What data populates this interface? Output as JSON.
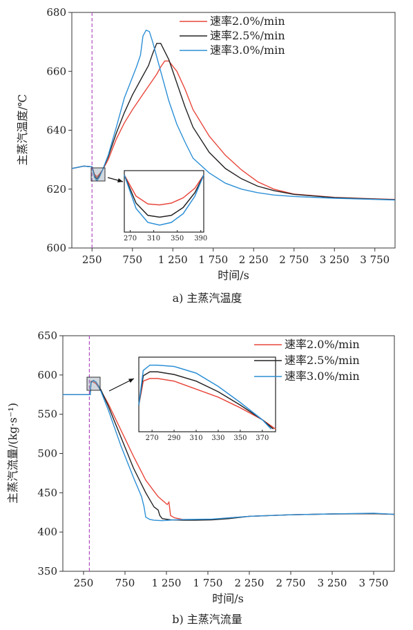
{
  "colors": {
    "s20": "#e8463a",
    "s25": "#222222",
    "s30": "#2b8fd6",
    "dash": "#b04cc0"
  },
  "chart_data": [
    {
      "type": "line",
      "caption": "a) 主蒸汽温度",
      "xlabel": "时间/s",
      "ylabel": "主蒸汽温度/℃",
      "xlim": [
        0,
        4000
      ],
      "ylim": [
        600,
        680
      ],
      "xticks": [
        250,
        750,
        1250,
        1750,
        2250,
        2750,
        3250,
        3750
      ],
      "xtick_labels": [
        "250",
        "750",
        "1 250",
        "1 750",
        "2 250",
        "2 750",
        "3 250",
        "3 750"
      ],
      "yticks": [
        600,
        620,
        640,
        660,
        680
      ],
      "ytick_labels": [
        "600",
        "620",
        "640",
        "660",
        "680"
      ],
      "marker_x": 250,
      "grid": false,
      "legend": "top-right",
      "series": [
        {
          "name": "速率2.0%/min",
          "color_key": "s20",
          "x": [
            0,
            150,
            250,
            280,
            310,
            340,
            380,
            450,
            550,
            650,
            750,
            850,
            950,
            1050,
            1100,
            1150,
            1200,
            1300,
            1400,
            1500,
            1700,
            1900,
            2100,
            2300,
            2500,
            2750,
            3250,
            3750,
            4000
          ],
          "y": [
            627,
            627.8,
            627.6,
            625,
            624.2,
            625,
            626.5,
            630,
            637,
            642.5,
            647,
            651,
            655,
            659,
            661.5,
            663.5,
            663.5,
            660,
            654,
            647,
            638,
            631.5,
            626.5,
            622.5,
            620,
            618.3,
            617.2,
            616.7,
            616.5
          ]
        },
        {
          "name": "速率2.5%/min",
          "color_key": "s25",
          "x": [
            0,
            150,
            250,
            280,
            310,
            340,
            380,
            450,
            550,
            650,
            750,
            850,
            950,
            1000,
            1050,
            1100,
            1200,
            1300,
            1400,
            1500,
            1700,
            1900,
            2100,
            2300,
            2500,
            2750,
            3250,
            3750,
            4000
          ],
          "y": [
            627,
            627.8,
            627.6,
            624.5,
            623.5,
            624.5,
            626.5,
            631,
            639,
            646,
            652,
            657,
            662,
            666,
            669.5,
            669.5,
            664,
            656,
            648,
            641,
            632.5,
            627,
            623.5,
            621,
            619.5,
            618.2,
            617.1,
            616.6,
            616.4
          ]
        },
        {
          "name": "速率3.0%/min",
          "color_key": "s30",
          "x": [
            0,
            150,
            250,
            280,
            310,
            340,
            380,
            450,
            550,
            650,
            750,
            800,
            850,
            880,
            920,
            960,
            1000,
            1100,
            1200,
            1300,
            1400,
            1500,
            1700,
            1900,
            2100,
            2300,
            2500,
            2750,
            3250,
            3750,
            4000
          ],
          "y": [
            627,
            627.8,
            627.6,
            624,
            622.8,
            624,
            626.5,
            631.5,
            641,
            651,
            658,
            661.5,
            665.5,
            672,
            674,
            673.5,
            670,
            660,
            650,
            642,
            636,
            630.5,
            625.5,
            622,
            620,
            618.8,
            618,
            617.5,
            616.9,
            616.5,
            616.3
          ]
        }
      ],
      "inset": {
        "xticks": [
          270,
          310,
          350,
          390
        ],
        "xtick_labels": [
          "270",
          "310",
          "350",
          "390"
        ],
        "xlim": [
          260,
          395
        ],
        "ylim": [
          621.5,
          628.5
        ],
        "series": [
          {
            "color_key": "s20",
            "x": [
              260,
              280,
              300,
              320,
              340,
              360,
              380,
              395
            ],
            "y": [
              628,
              625.6,
              624.7,
              624.6,
              624.8,
              625.4,
              626.5,
              628
            ]
          },
          {
            "color_key": "s25",
            "x": [
              260,
              280,
              300,
              320,
              340,
              360,
              380,
              395
            ],
            "y": [
              628,
              624.8,
              623.4,
              623.2,
              623.4,
              624.3,
              626,
              628
            ]
          },
          {
            "color_key": "s30",
            "x": [
              260,
              280,
              300,
              320,
              340,
              360,
              380,
              395
            ],
            "y": [
              628,
              624.2,
              622.6,
              622.3,
              622.6,
              623.6,
              625.6,
              628
            ]
          }
        ]
      }
    },
    {
      "type": "line",
      "caption": "b) 主蒸汽流量",
      "xlabel": "时间/s",
      "ylabel": "主蒸汽流量/(kg·s⁻¹)",
      "xlim": [
        0,
        4000
      ],
      "ylim": [
        350,
        650
      ],
      "xticks": [
        250,
        750,
        1250,
        1750,
        2250,
        2750,
        3250,
        3750
      ],
      "xtick_labels": [
        "250",
        "750",
        "1 250",
        "1 750",
        "2 250",
        "2 750",
        "3 250",
        "3 750"
      ],
      "yticks": [
        350,
        400,
        450,
        500,
        550,
        600,
        650
      ],
      "ytick_labels": [
        "350",
        "400",
        "450",
        "500",
        "550",
        "600",
        "650"
      ],
      "marker_x": 320,
      "grid": false,
      "legend": "top-right",
      "series": [
        {
          "name": "速率2.0%/min",
          "color_key": "s20",
          "x": [
            0,
            250,
            330,
            340,
            370,
            400,
            460,
            550,
            700,
            850,
            1000,
            1150,
            1260,
            1280,
            1300,
            1350,
            1450,
            1600,
            1800,
            2000,
            2250,
            2750,
            3250,
            3750,
            4000
          ],
          "y": [
            575,
            575,
            575,
            592,
            591,
            589,
            580,
            563,
            530,
            497,
            466,
            445,
            435,
            438,
            421,
            418,
            416,
            415.5,
            416,
            418,
            420,
            422,
            423,
            423.5,
            422.5
          ]
        },
        {
          "name": "速率2.5%/min",
          "color_key": "s25",
          "x": [
            0,
            250,
            330,
            340,
            370,
            400,
            460,
            550,
            700,
            850,
            1000,
            1100,
            1150,
            1170,
            1200,
            1300,
            1450,
            1600,
            1800,
            2000,
            2250,
            2750,
            3250,
            3750,
            4000
          ],
          "y": [
            575,
            575,
            575,
            591,
            593,
            591,
            581,
            560,
            521,
            482,
            450,
            432,
            428,
            421,
            417,
            415.5,
            415,
            415,
            415.5,
            417,
            420,
            422,
            423,
            423.5,
            422.5
          ]
        },
        {
          "name": "速率3.0%/min",
          "color_key": "s30",
          "x": [
            0,
            250,
            330,
            340,
            370,
            400,
            460,
            550,
            700,
            850,
            950,
            980,
            1000,
            1050,
            1100,
            1200,
            1350,
            1500,
            1800,
            2000,
            2250,
            2750,
            3250,
            3750,
            4000
          ],
          "y": [
            575,
            575,
            575,
            590,
            593,
            591,
            579,
            555,
            510,
            470,
            445,
            432,
            419,
            416,
            415,
            414.5,
            415.5,
            416,
            416.5,
            418,
            420,
            422,
            423,
            424,
            422.5
          ]
        }
      ],
      "inset": {
        "xticks": [
          270,
          290,
          310,
          330,
          350,
          370
        ],
        "xtick_labels": [
          "270",
          "290",
          "310",
          "330",
          "350",
          "370"
        ],
        "xlim": [
          258,
          382
        ],
        "ylim": [
          570,
          598
        ],
        "series": [
          {
            "color_key": "s20",
            "x": [
              258,
              262,
              268,
              275,
              290,
              310,
              330,
              350,
              370,
              382
            ],
            "y": [
              580,
              589,
              590,
              590,
              589,
              586,
              583,
              579,
              574.5,
              571
            ]
          },
          {
            "color_key": "s25",
            "x": [
              258,
              262,
              268,
              275,
              290,
              310,
              330,
              350,
              370,
              380
            ],
            "y": [
              580,
              591,
              592.5,
              592.5,
              591.5,
              589,
              585,
              580,
              574.5,
              571
            ]
          },
          {
            "color_key": "s30",
            "x": [
              258,
              262,
              268,
              275,
              290,
              310,
              330,
              350,
              370,
              378
            ],
            "y": [
              580,
              593,
              595,
              595,
              594.5,
              592,
              587,
              581,
              574.5,
              571
            ]
          }
        ]
      }
    }
  ]
}
